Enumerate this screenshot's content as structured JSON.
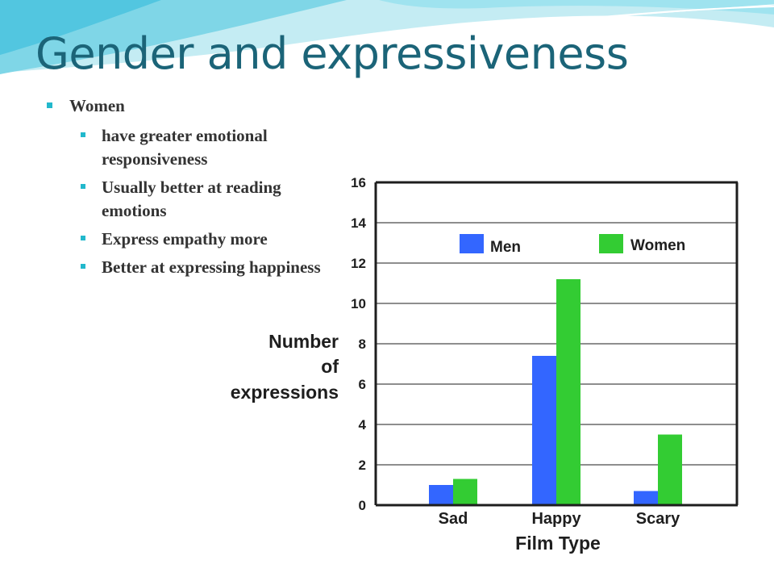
{
  "slide": {
    "title": "Gender and expressiveness",
    "bullets": [
      {
        "level": 1,
        "text": "Women"
      },
      {
        "level": 2,
        "text": "have greater emotional responsiveness"
      },
      {
        "level": 2,
        "text": "Usually better at reading emotions"
      },
      {
        "level": 2,
        "text": "Express empathy more"
      },
      {
        "level": 2,
        "text": "Better at expressing happiness"
      }
    ]
  },
  "colors": {
    "title": "#1b6478",
    "bullet_marker": "#22b8cc",
    "wave_light": "#c4ecf3",
    "wave_dark": "#52c6e0"
  },
  "chart_data": {
    "type": "bar",
    "categories": [
      "Sad",
      "Happy",
      "Scary"
    ],
    "series": [
      {
        "name": "Men",
        "color": "#3366ff",
        "values": [
          1.0,
          7.4,
          0.7
        ]
      },
      {
        "name": "Women",
        "color": "#33cc33",
        "values": [
          1.3,
          11.2,
          3.5
        ]
      }
    ],
    "xlabel": "Film Type",
    "ylabel": [
      "Number",
      "of",
      "expressions"
    ],
    "ylim": [
      0,
      16
    ],
    "yticks": [
      0,
      2,
      4,
      6,
      8,
      10,
      12,
      14,
      16
    ],
    "grid": true,
    "legend": "top"
  }
}
